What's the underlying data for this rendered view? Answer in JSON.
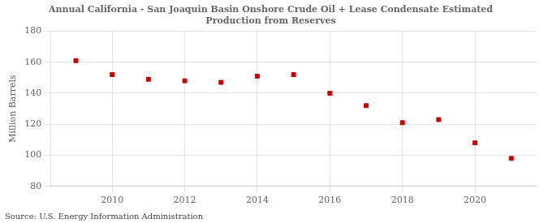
{
  "chart_data": {
    "type": "scatter",
    "title": "Annual California - San Joaquin Basin Onshore Crude Oil + Lease Condensate Estimated\nProduction from Reserves",
    "ylabel": "Million Barrels",
    "annotation": "Source: U.S. Energy Information Administration",
    "x": [
      2009,
      2010,
      2011,
      2012,
      2013,
      2014,
      2015,
      2016,
      2017,
      2018,
      2019,
      2020,
      2021
    ],
    "values": [
      161,
      152,
      149,
      148,
      147,
      151,
      152,
      140,
      132,
      121,
      123,
      108,
      98
    ],
    "color": "#cc0000",
    "marker": "square",
    "xlim": [
      2008.3,
      2021.7
    ],
    "xticks": [
      2010,
      2012,
      2014,
      2016,
      2018,
      2020
    ],
    "ylim": [
      80,
      180
    ],
    "yticks": [
      80,
      100,
      120,
      140,
      160,
      180
    ],
    "grid": true
  }
}
